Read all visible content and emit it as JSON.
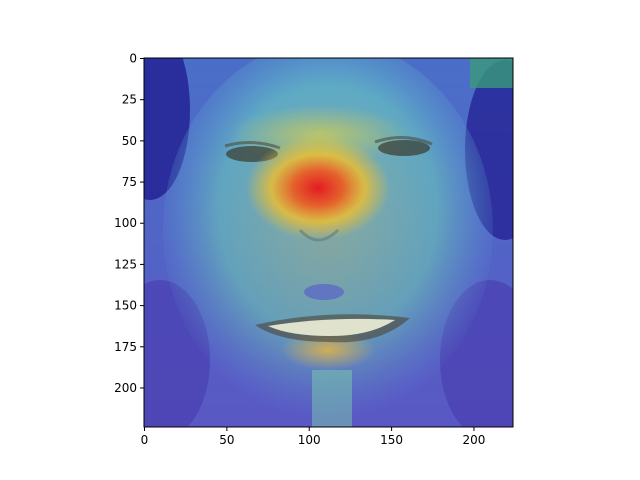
{
  "image": {
    "description_icon": "face-heatmap-icon",
    "colormap": "jet",
    "colors": {
      "hot": "#e8131c",
      "warm": "#f6c126",
      "mid": "#7fd8c2",
      "cool": "#3f56c9",
      "cold": "#1f1a8e"
    }
  },
  "axes": {
    "x_ticks": [
      {
        "value": 0,
        "label": "0"
      },
      {
        "value": 50,
        "label": "50"
      },
      {
        "value": 100,
        "label": "100"
      },
      {
        "value": 150,
        "label": "150"
      },
      {
        "value": 200,
        "label": "200"
      }
    ],
    "y_ticks": [
      {
        "value": 0,
        "label": "0"
      },
      {
        "value": 25,
        "label": "25"
      },
      {
        "value": 50,
        "label": "50"
      },
      {
        "value": 75,
        "label": "75"
      },
      {
        "value": 100,
        "label": "100"
      },
      {
        "value": 125,
        "label": "125"
      },
      {
        "value": 150,
        "label": "150"
      },
      {
        "value": 175,
        "label": "175"
      },
      {
        "value": 200,
        "label": "200"
      }
    ],
    "x_range": [
      0,
      224
    ],
    "y_range": [
      0,
      224
    ],
    "y_inverted": true
  }
}
